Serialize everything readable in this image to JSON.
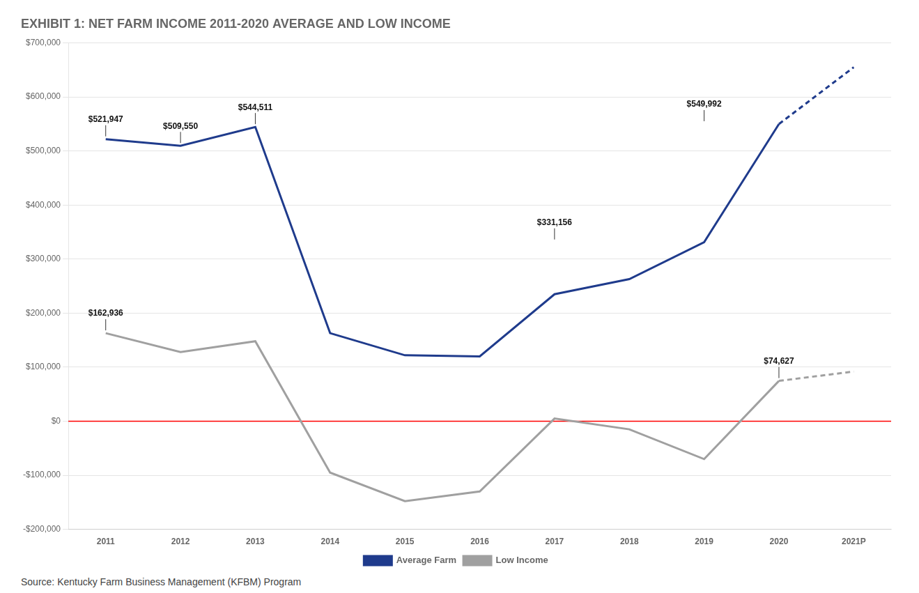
{
  "chart_data": {
    "type": "line",
    "title": "EXHIBIT 1: NET FARM INCOME 2011-2020 AVERAGE AND LOW INCOME",
    "source": "Source: Kentucky Farm Business Management (KFBM) Program",
    "categories": [
      "2011",
      "2012",
      "2013",
      "2014",
      "2015",
      "2016",
      "2017",
      "2018",
      "2019",
      "2020",
      "2021P"
    ],
    "series": [
      {
        "name": "Average Farm",
        "color": "#1F3B8C",
        "line_style": "solid",
        "values": [
          521947,
          509550,
          544511,
          162936,
          122000,
          120000,
          235000,
          263000,
          331156,
          549992,
          null
        ]
      },
      {
        "color": "#1F3B8C",
        "line_style": "dashed",
        "values": [
          null,
          null,
          null,
          null,
          null,
          null,
          null,
          null,
          null,
          549992,
          655000
        ]
      },
      {
        "name": "Low Income",
        "color": "#A0A0A0",
        "line_style": "solid",
        "values": [
          162936,
          128000,
          148000,
          -95000,
          -148000,
          -130000,
          5000,
          -15000,
          -70000,
          74627,
          null
        ]
      },
      {
        "color": "#A0A0A0",
        "line_style": "dashed",
        "values": [
          null,
          null,
          null,
          null,
          null,
          null,
          null,
          null,
          null,
          74627,
          92000
        ]
      }
    ],
    "ylim": [
      -200000,
      700000
    ],
    "yticks": [
      {
        "value": -200000,
        "label": "-$200,000"
      },
      {
        "value": -100000,
        "label": "-$100,000"
      },
      {
        "value": 0,
        "label": "$0"
      },
      {
        "value": 100000,
        "label": "$100,000"
      },
      {
        "value": 200000,
        "label": "$200,000"
      },
      {
        "value": 300000,
        "label": "$300,000"
      },
      {
        "value": 400000,
        "label": "$400,000"
      },
      {
        "value": 500000,
        "label": "$500,000"
      },
      {
        "value": 600000,
        "label": "$600,000"
      },
      {
        "value": 700000,
        "label": "$700,000"
      }
    ],
    "reference_lines": [
      {
        "value": 0,
        "color": "#FF0000"
      }
    ],
    "annotations": [
      {
        "text": "$521,947",
        "x": "2011",
        "y": 521947
      },
      {
        "text": "$509,550",
        "x": "2012",
        "y": 509550
      },
      {
        "text": "$544,511",
        "x": "2013",
        "y": 544511
      },
      {
        "text": "$162,936",
        "x": "2011",
        "y": 162936
      },
      {
        "text": "$74,627",
        "x": "2020",
        "y": 74627
      },
      {
        "text": "$331,156",
        "x": "2017",
        "y": 331156
      },
      {
        "text": "$549,992",
        "x": "2019",
        "y": 549992
      }
    ],
    "grid": true,
    "legend": "bottom"
  }
}
